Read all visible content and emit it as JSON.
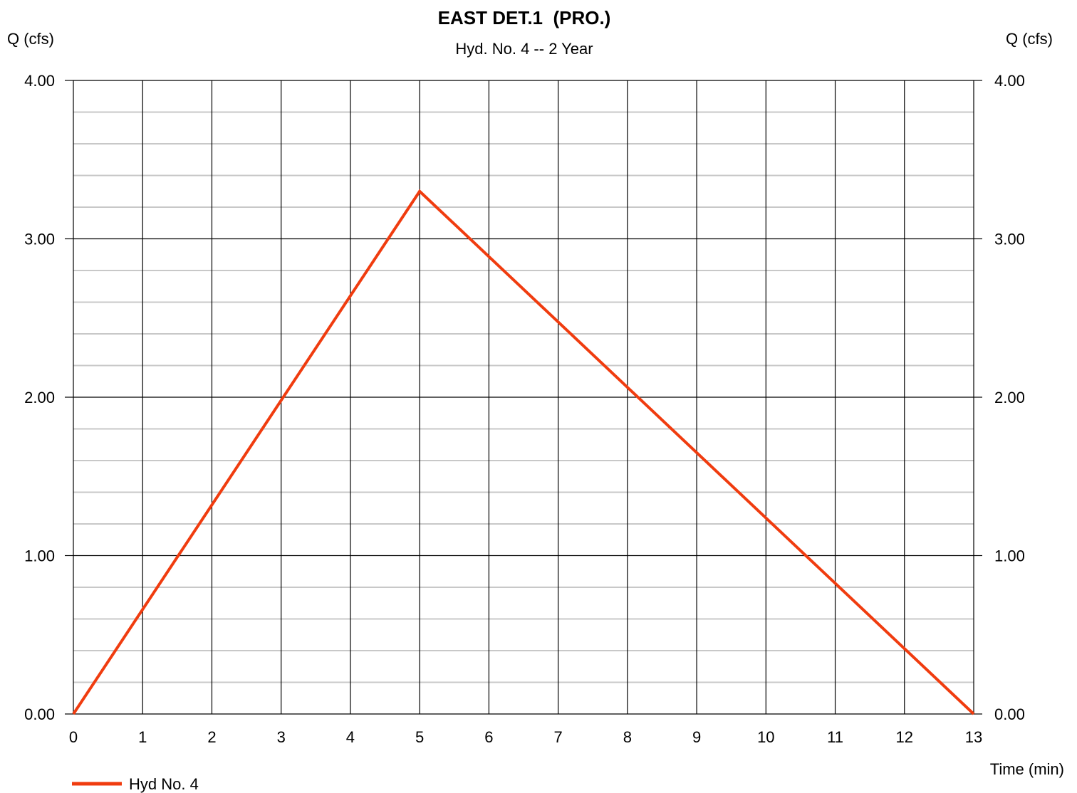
{
  "chart_data": {
    "type": "line",
    "title": "EAST DET.1  (PRO.)",
    "subtitle": "Hyd. No. 4 -- 2 Year",
    "ylabel_left": "Q (cfs)",
    "ylabel_right": "Q (cfs)",
    "xlabel": "Time (min)",
    "xlim": [
      0,
      13
    ],
    "ylim": [
      0,
      4
    ],
    "x_ticks": [
      0,
      1,
      2,
      3,
      4,
      5,
      6,
      7,
      8,
      9,
      10,
      11,
      12,
      13
    ],
    "y_ticks": [
      "0.00",
      "1.00",
      "2.00",
      "3.00",
      "4.00"
    ],
    "y_tick_values": [
      0,
      1,
      2,
      3,
      4
    ],
    "y_minor_step": 0.2,
    "grid": true,
    "legend_position": "bottom-left",
    "series": [
      {
        "name": "Hyd No. 4",
        "color": "#f03c0f",
        "x": [
          0,
          5,
          13
        ],
        "y": [
          0,
          3.3,
          0
        ]
      }
    ]
  }
}
